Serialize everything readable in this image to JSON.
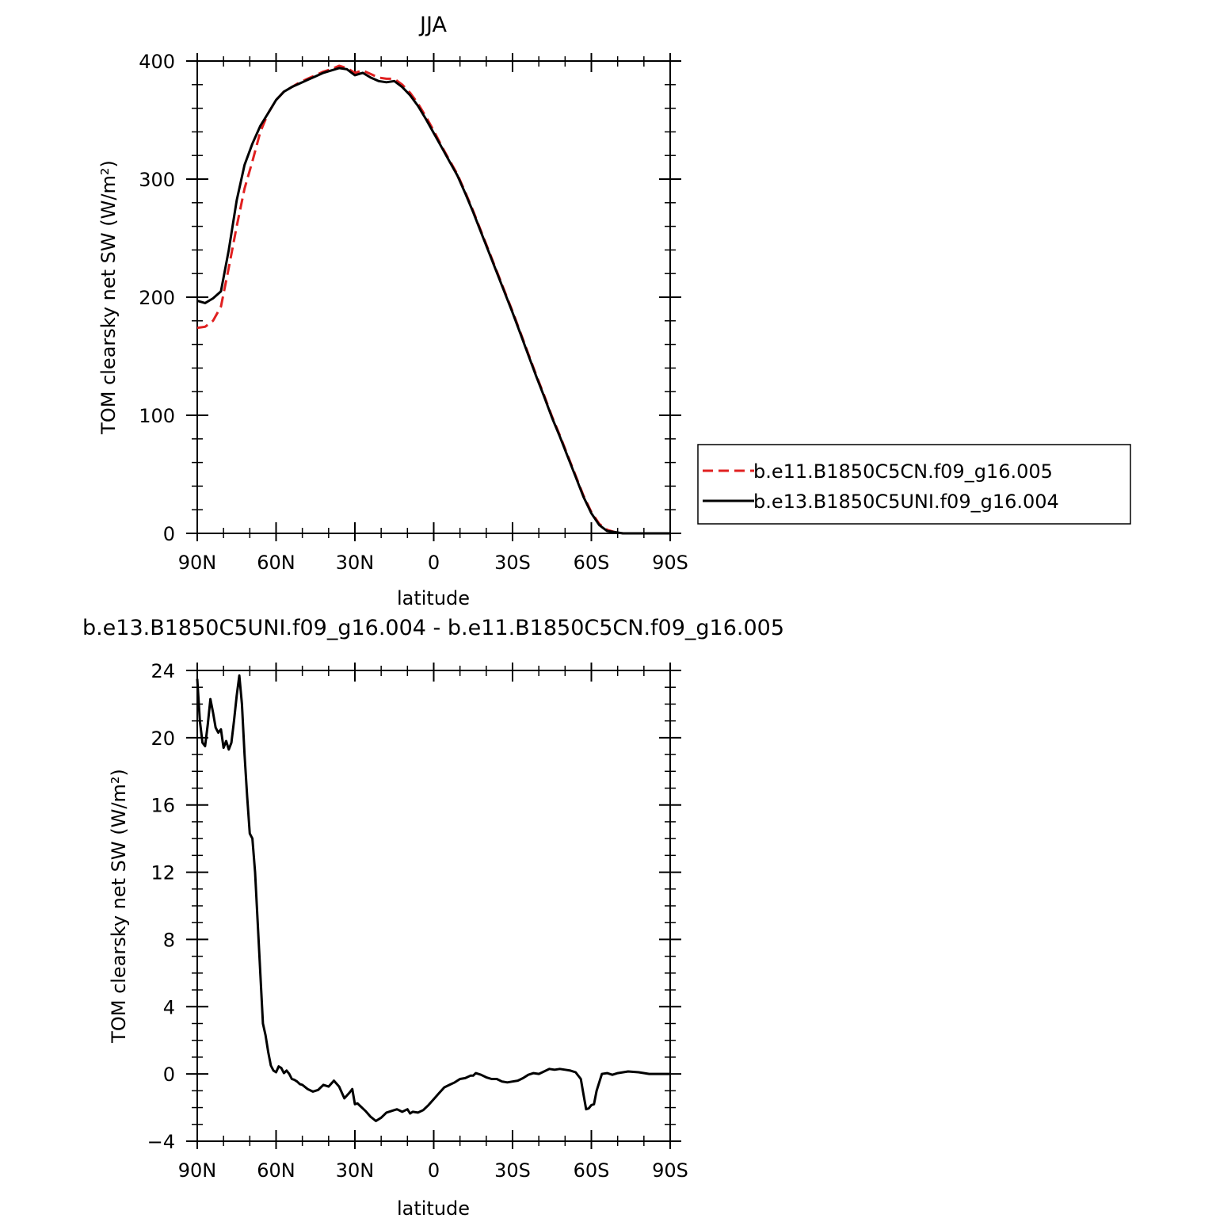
{
  "chart_data": [
    {
      "type": "line",
      "title": "JJA",
      "xlabel": "latitude",
      "ylabel": "TOM clearsky net SW (W/m²)",
      "xlim": [
        90,
        -90
      ],
      "ylim": [
        0,
        400
      ],
      "xticks": [
        {
          "value": 90,
          "label": "90N"
        },
        {
          "value": 60,
          "label": "60N"
        },
        {
          "value": 30,
          "label": "30N"
        },
        {
          "value": 0,
          "label": "0"
        },
        {
          "value": -30,
          "label": "30S"
        },
        {
          "value": -60,
          "label": "60S"
        },
        {
          "value": -90,
          "label": "90S"
        }
      ],
      "yticks": [
        {
          "value": 0,
          "label": "0"
        },
        {
          "value": 100,
          "label": "100"
        },
        {
          "value": 200,
          "label": "200"
        },
        {
          "value": 300,
          "label": "300"
        },
        {
          "value": 400,
          "label": "400"
        }
      ],
      "legend": "right",
      "series": [
        {
          "name": "b.e11.B1850C5CN.f09_g16.005",
          "color": "#e02020",
          "dash": "dashed",
          "x": [
            90,
            87,
            84,
            81,
            78,
            75,
            72,
            69,
            66,
            63,
            60,
            57,
            54,
            51,
            48,
            45,
            42,
            39,
            36,
            33,
            30,
            27,
            24,
            21,
            18,
            15,
            12,
            9,
            6,
            3,
            0,
            -3,
            -6,
            -9,
            -12,
            -15,
            -18,
            -21,
            -24,
            -27,
            -30,
            -33,
            -36,
            -39,
            -42,
            -45,
            -48,
            -51,
            -54,
            -57,
            -60,
            -63,
            -66,
            -69,
            -72,
            -75,
            -78,
            -81,
            -84,
            -87,
            -90
          ],
          "y": [
            174,
            175,
            180,
            192,
            225,
            260,
            292,
            315,
            340,
            356,
            367,
            374,
            378,
            382,
            385,
            388,
            391,
            393,
            396,
            394,
            390,
            392,
            389,
            386,
            385,
            385,
            380,
            373,
            364,
            353,
            341,
            328,
            316,
            304,
            289,
            273,
            256,
            239,
            222,
            205,
            188,
            170,
            152,
            134,
            117,
            99,
            83,
            66,
            49,
            32,
            18,
            8,
            3,
            1,
            0,
            0,
            0,
            0,
            0,
            0,
            0
          ]
        },
        {
          "name": "b.e13.B1850C5UNI.f09_g16.004",
          "color": "#000000",
          "dash": "solid",
          "x": [
            90,
            87,
            84,
            81,
            78,
            75,
            72,
            69,
            66,
            63,
            60,
            57,
            54,
            51,
            48,
            45,
            42,
            39,
            36,
            33,
            30,
            27,
            24,
            21,
            18,
            15,
            12,
            9,
            6,
            3,
            0,
            -3,
            -6,
            -9,
            -12,
            -15,
            -18,
            -21,
            -24,
            -27,
            -30,
            -33,
            -36,
            -39,
            -42,
            -45,
            -48,
            -51,
            -54,
            -57,
            -60,
            -63,
            -66,
            -69,
            -72,
            -75,
            -78,
            -81,
            -84,
            -87,
            -90
          ],
          "y": [
            197,
            195,
            199,
            205,
            240,
            282,
            312,
            330,
            345,
            356,
            367,
            374,
            378,
            381,
            384,
            387,
            390,
            392,
            394,
            393,
            388,
            390,
            386,
            383,
            382,
            383,
            378,
            371,
            362,
            351,
            339,
            327,
            315,
            303,
            288,
            272,
            255,
            238,
            221,
            204,
            187,
            169,
            151,
            133,
            116,
            98,
            82,
            65,
            48,
            31,
            17,
            7,
            2,
            1,
            0,
            0,
            0,
            0,
            0,
            0,
            0
          ]
        }
      ]
    },
    {
      "type": "line",
      "title": "b.e13.B1850C5UNI.f09_g16.004 - b.e11.B1850C5CN.f09_g16.005",
      "xlabel": "latitude",
      "ylabel": "TOM clearsky net SW (W/m²)",
      "xlim": [
        90,
        -90
      ],
      "ylim": [
        -4,
        24
      ],
      "xticks": [
        {
          "value": 90,
          "label": "90N"
        },
        {
          "value": 60,
          "label": "60N"
        },
        {
          "value": 30,
          "label": "30N"
        },
        {
          "value": 0,
          "label": "0"
        },
        {
          "value": -30,
          "label": "30S"
        },
        {
          "value": -60,
          "label": "60S"
        },
        {
          "value": -90,
          "label": "90S"
        }
      ],
      "yticks": [
        {
          "value": -4,
          "label": "−4"
        },
        {
          "value": 0,
          "label": "0"
        },
        {
          "value": 4,
          "label": "4"
        },
        {
          "value": 8,
          "label": "8"
        },
        {
          "value": 12,
          "label": "12"
        },
        {
          "value": 16,
          "label": "16"
        },
        {
          "value": 20,
          "label": "20"
        },
        {
          "value": 24,
          "label": "24"
        }
      ],
      "series": [
        {
          "color": "#000000",
          "dash": "solid",
          "x": [
            90,
            89,
            88,
            87,
            86,
            85,
            84,
            83,
            82,
            81,
            80,
            79,
            78,
            77,
            76,
            75,
            74,
            73,
            72,
            71,
            70,
            69,
            68,
            67,
            66,
            65,
            64,
            63,
            62,
            61,
            60,
            59,
            58,
            57,
            56,
            55,
            54,
            53,
            52,
            51,
            50,
            48,
            46,
            44,
            42,
            40,
            38,
            36,
            34,
            32,
            31,
            30,
            29,
            28,
            26,
            24,
            22,
            20,
            18,
            16,
            14,
            12,
            10,
            9,
            8,
            6,
            4,
            2,
            0,
            -2,
            -4,
            -6,
            -8,
            -10,
            -12,
            -14,
            -15,
            -16,
            -18,
            -20,
            -22,
            -24,
            -26,
            -28,
            -30,
            -32,
            -34,
            -36,
            -38,
            -40,
            -42,
            -44,
            -46,
            -48,
            -50,
            -52,
            -54,
            -56,
            -57,
            -58,
            -59,
            -60,
            -61,
            -62,
            -64,
            -66,
            -68,
            -70,
            -74,
            -78,
            -82,
            -86,
            -90
          ],
          "y": [
            23.5,
            21.0,
            19.7,
            19.5,
            20.8,
            22.3,
            21.5,
            20.6,
            20.3,
            20.5,
            19.4,
            19.8,
            19.3,
            19.7,
            21.0,
            22.5,
            23.7,
            22.0,
            19.0,
            16.5,
            14.3,
            14.0,
            12.0,
            9.0,
            6.0,
            3.0,
            2.3,
            1.3,
            0.5,
            0.2,
            0.1,
            0.45,
            0.35,
            0.05,
            0.2,
            0.0,
            -0.3,
            -0.35,
            -0.45,
            -0.6,
            -0.65,
            -0.9,
            -1.05,
            -0.95,
            -0.65,
            -0.75,
            -0.4,
            -0.75,
            -1.45,
            -1.1,
            -0.9,
            -1.8,
            -1.75,
            -1.9,
            -2.2,
            -2.55,
            -2.8,
            -2.6,
            -2.3,
            -2.2,
            -2.1,
            -2.25,
            -2.1,
            -2.35,
            -2.25,
            -2.3,
            -2.15,
            -1.85,
            -1.5,
            -1.15,
            -0.8,
            -0.65,
            -0.5,
            -0.3,
            -0.25,
            -0.1,
            -0.1,
            0.05,
            -0.05,
            -0.2,
            -0.3,
            -0.3,
            -0.45,
            -0.5,
            -0.45,
            -0.4,
            -0.25,
            -0.05,
            0.05,
            0.0,
            0.15,
            0.3,
            0.25,
            0.3,
            0.25,
            0.2,
            0.1,
            -0.3,
            -1.2,
            -2.1,
            -2.05,
            -1.85,
            -1.8,
            -1.0,
            0.0,
            0.05,
            -0.05,
            0.05,
            0.15,
            0.1,
            0.0,
            0.0,
            0.0
          ]
        }
      ]
    }
  ]
}
